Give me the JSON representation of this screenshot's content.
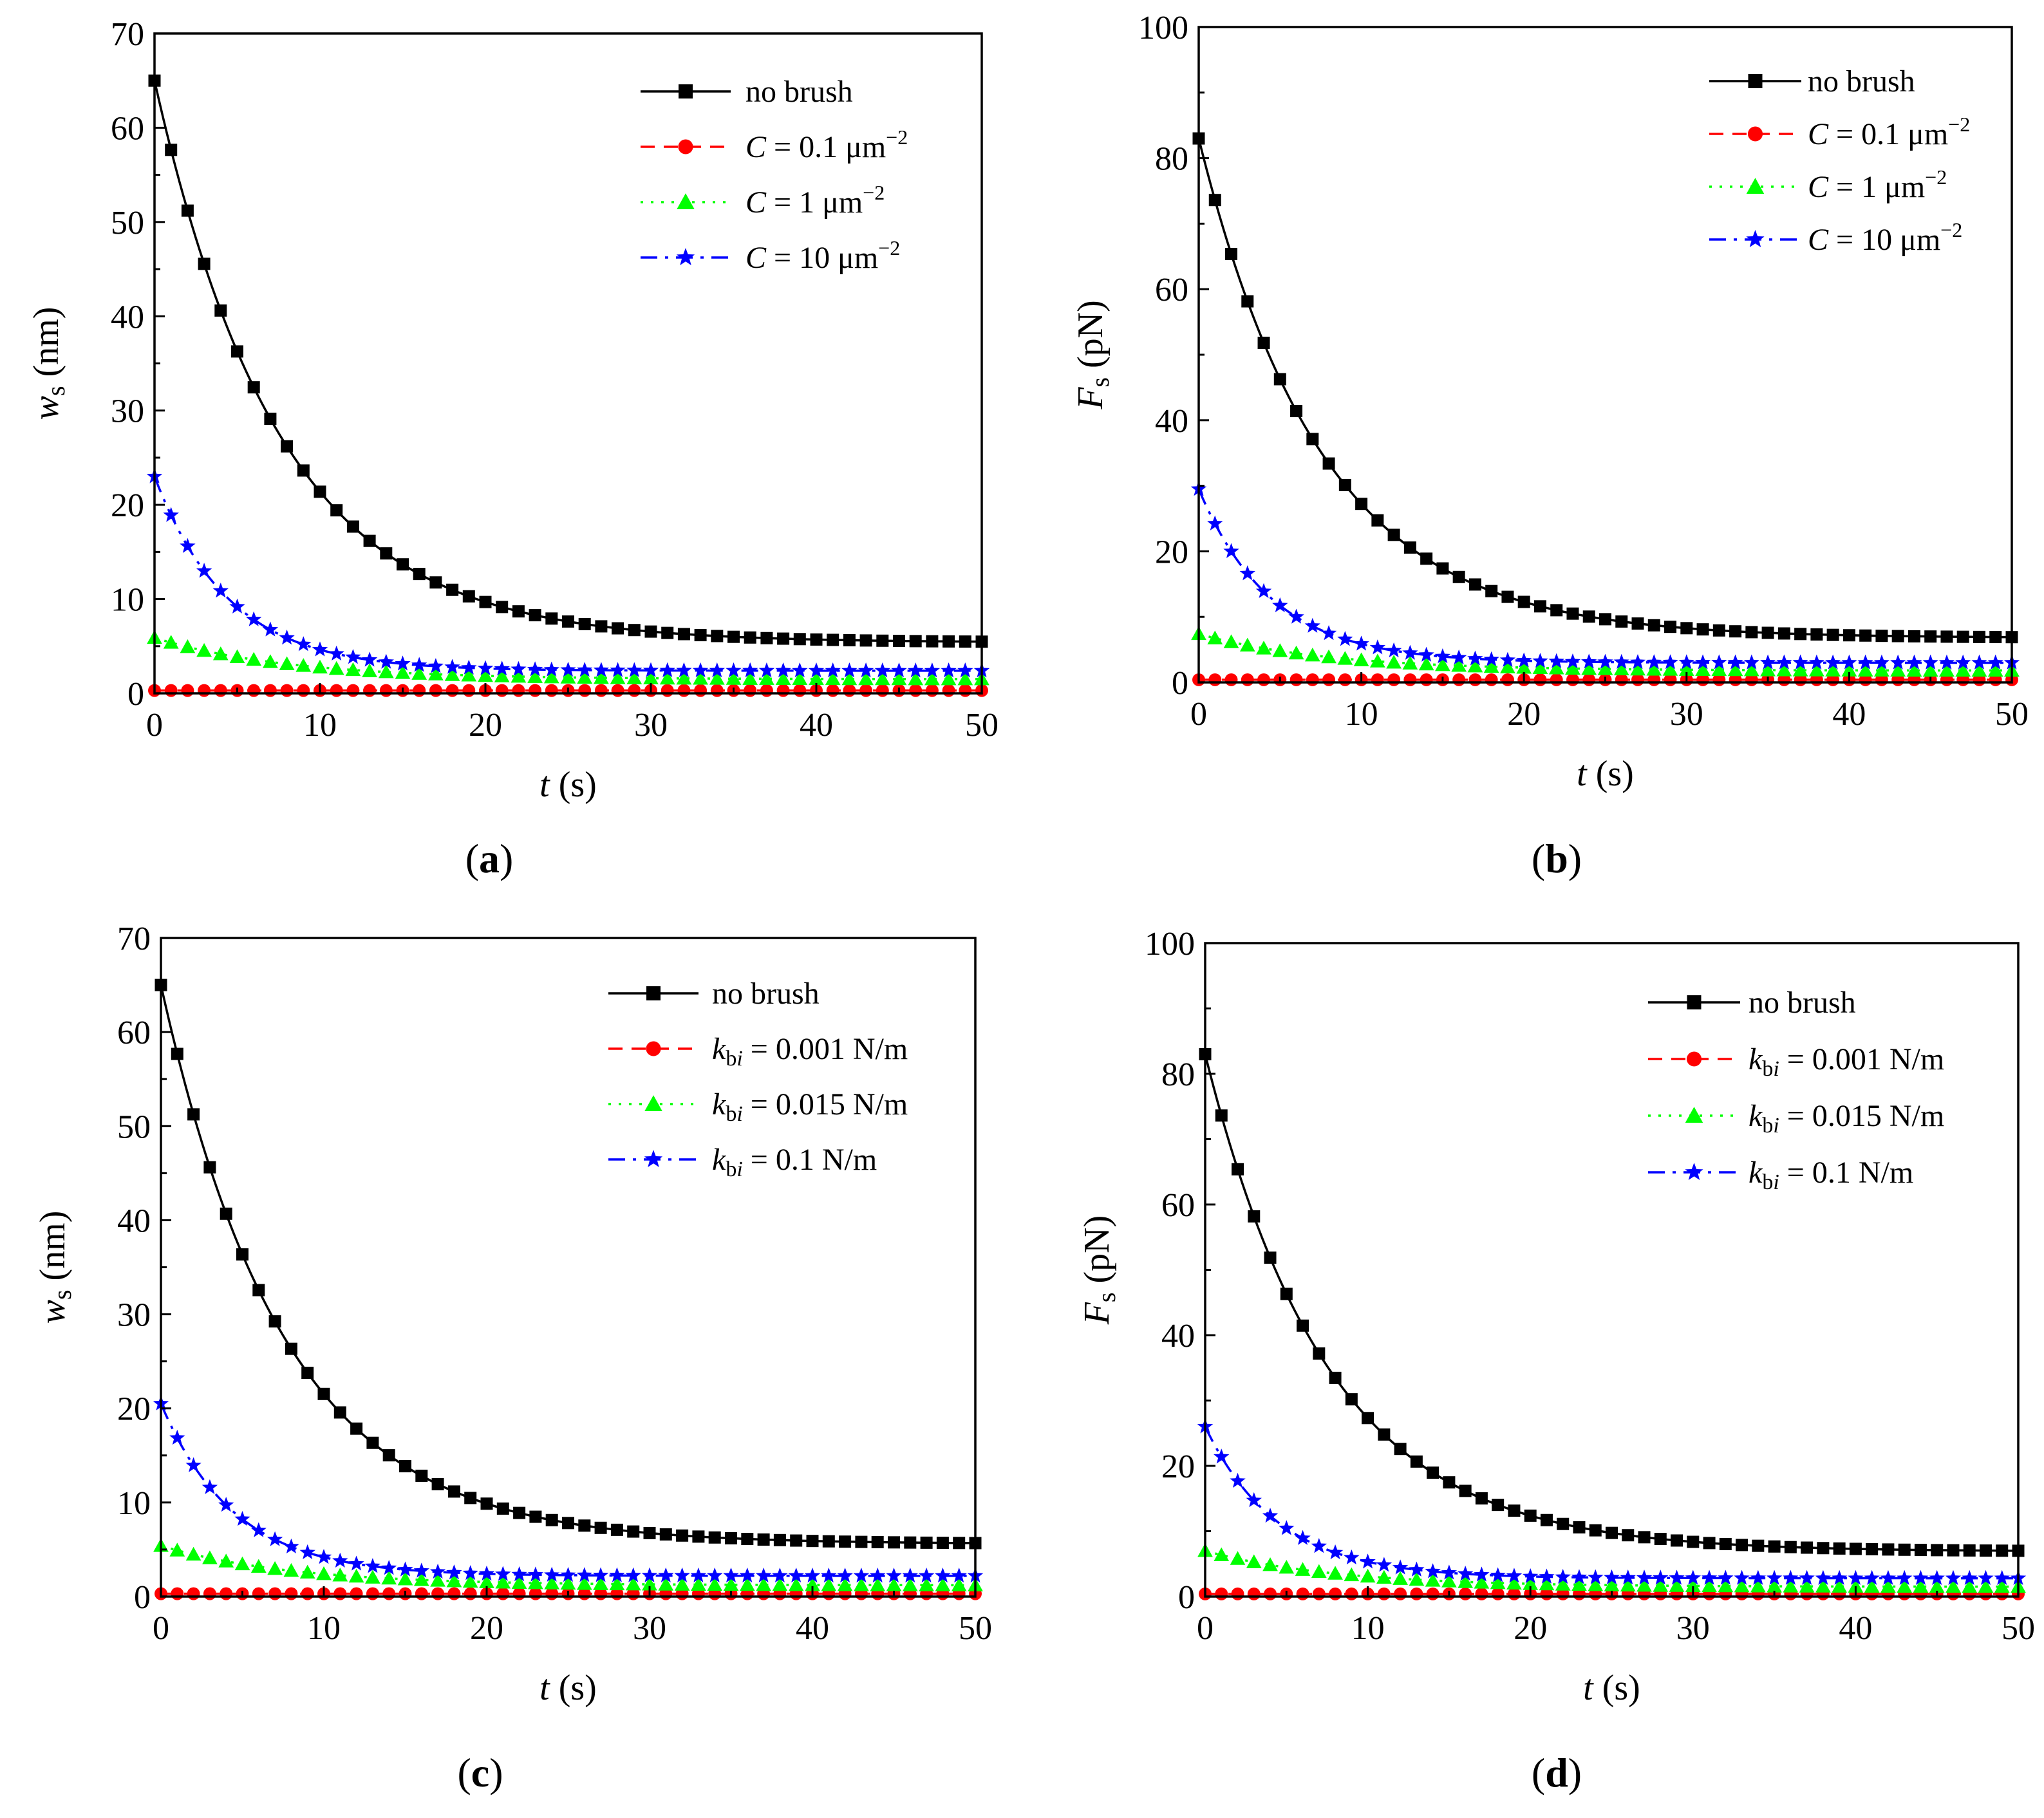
{
  "figure": {
    "panels": [
      {
        "label": "a",
        "legend_variant": "C",
        "chart_data": {
          "type": "line",
          "xlabel": "t (s)",
          "xlabel_var": "t",
          "xlabel_unit": " (s)",
          "ylabel": "w_s (nm)",
          "ylabel_var": "w",
          "ylabel_sub": "s",
          "ylabel_unit": " (nm)",
          "xlim": [
            0,
            50
          ],
          "ylim": [
            0,
            70
          ],
          "xticks": [
            "0",
            "10",
            "20",
            "30",
            "40",
            "50"
          ],
          "yticks": [
            "0",
            "10",
            "20",
            "30",
            "40",
            "50",
            "60",
            "70"
          ],
          "x": [
            0,
            1,
            2,
            3,
            4,
            5,
            6,
            7,
            8,
            9,
            10,
            11,
            12,
            13,
            14,
            15,
            16,
            17,
            18,
            19,
            20,
            21,
            22,
            23,
            24,
            25,
            26,
            27,
            28,
            29,
            30,
            31,
            32,
            33,
            34,
            35,
            36,
            37,
            38,
            39,
            40,
            41,
            42,
            43,
            44,
            45,
            46,
            47,
            48,
            49,
            50
          ],
          "legend_position": "top-right",
          "series": [
            {
              "name": "no brush",
              "legend_var": "",
              "legend_sub": "",
              "legend_rest": "no brush",
              "legend_sup": "",
              "color": "#000000",
              "dash": "solid",
              "marker": "square",
              "y0": 65,
              "yinf": 5.4,
              "tau": 7.6
            },
            {
              "name": "C = 0.1 μm−2",
              "legend_var": "C",
              "legend_sub": "",
              "legend_rest": " = 0.1 μm",
              "legend_sup": "−2",
              "color": "#ff0000",
              "dash": "dash",
              "marker": "circle",
              "y0": 0.3,
              "yinf": 0.3,
              "tau": 5
            },
            {
              "name": "C = 1 μm−2",
              "legend_var": "C",
              "legend_sub": "",
              "legend_rest": " = 1 μm",
              "legend_sup": "−2",
              "color": "#00ff00",
              "dash": "dot",
              "marker": "triangle",
              "y0": 5.9,
              "yinf": 1.5,
              "tau": 8
            },
            {
              "name": "C = 10 μm−2",
              "legend_var": "C",
              "legend_sub": "",
              "legend_rest": " = 10 μm",
              "legend_sup": "−2",
              "color": "#0000ff",
              "dash": "dashdot",
              "marker": "star",
              "y0": 23,
              "yinf": 2.4,
              "tau": 4.5
            }
          ]
        }
      },
      {
        "label": "b",
        "legend_variant": "C",
        "chart_data": {
          "type": "line",
          "xlabel": "t (s)",
          "xlabel_var": "t",
          "xlabel_unit": " (s)",
          "ylabel": "F_s (pN)",
          "ylabel_var": "F",
          "ylabel_sub": "s",
          "ylabel_unit": " (pN)",
          "xlim": [
            0,
            50
          ],
          "ylim": [
            0,
            100
          ],
          "xticks": [
            "0",
            "10",
            "20",
            "30",
            "40",
            "50"
          ],
          "yticks": [
            "0",
            "20",
            "40",
            "60",
            "80",
            "100"
          ],
          "x": [
            0,
            1,
            2,
            3,
            4,
            5,
            6,
            7,
            8,
            9,
            10,
            11,
            12,
            13,
            14,
            15,
            16,
            17,
            18,
            19,
            20,
            21,
            22,
            23,
            24,
            25,
            26,
            27,
            28,
            29,
            30,
            31,
            32,
            33,
            34,
            35,
            36,
            37,
            38,
            39,
            40,
            41,
            42,
            43,
            44,
            45,
            46,
            47,
            48,
            49,
            50
          ],
          "legend_position": "top-right",
          "series": [
            {
              "name": "no brush",
              "legend_var": "",
              "legend_sub": "",
              "legend_rest": "no brush",
              "legend_sup": "",
              "color": "#000000",
              "dash": "solid",
              "marker": "square",
              "y0": 83,
              "yinf": 6.8,
              "tau": 7.6
            },
            {
              "name": "C = 0.1 μm−2",
              "legend_var": "C",
              "legend_sub": "",
              "legend_rest": " = 0.1 μm",
              "legend_sup": "−2",
              "color": "#ff0000",
              "dash": "dash",
              "marker": "circle",
              "y0": 0.4,
              "yinf": 0.4,
              "tau": 5
            },
            {
              "name": "C = 1 μm−2",
              "legend_var": "C",
              "legend_sub": "",
              "legend_rest": " = 1 μm",
              "legend_sup": "−2",
              "color": "#00ff00",
              "dash": "dot",
              "marker": "triangle",
              "y0": 7.4,
              "yinf": 1.8,
              "tau": 8
            },
            {
              "name": "C = 10 μm−2",
              "legend_var": "C",
              "legend_sub": "",
              "legend_rest": " = 10 μm",
              "legend_sup": "−2",
              "color": "#0000ff",
              "dash": "dashdot",
              "marker": "star",
              "y0": 29.5,
              "yinf": 3.0,
              "tau": 4.5
            }
          ]
        }
      },
      {
        "label": "c",
        "legend_variant": "k",
        "chart_data": {
          "type": "line",
          "xlabel": "t (s)",
          "xlabel_var": "t",
          "xlabel_unit": " (s)",
          "ylabel": "w_s (nm)",
          "ylabel_var": "w",
          "ylabel_sub": "s",
          "ylabel_unit": " (nm)",
          "xlim": [
            0,
            50
          ],
          "ylim": [
            0,
            70
          ],
          "xticks": [
            "0",
            "10",
            "20",
            "30",
            "40",
            "50"
          ],
          "yticks": [
            "0",
            "10",
            "20",
            "30",
            "40",
            "50",
            "60",
            "70"
          ],
          "x": [
            0,
            1,
            2,
            3,
            4,
            5,
            6,
            7,
            8,
            9,
            10,
            11,
            12,
            13,
            14,
            15,
            16,
            17,
            18,
            19,
            20,
            21,
            22,
            23,
            24,
            25,
            26,
            27,
            28,
            29,
            30,
            31,
            32,
            33,
            34,
            35,
            36,
            37,
            38,
            39,
            40,
            41,
            42,
            43,
            44,
            45,
            46,
            47,
            48,
            49,
            50
          ],
          "legend_position": "top-right",
          "series": [
            {
              "name": "no brush",
              "legend_var": "",
              "legend_sub": "",
              "legend_rest": "no brush",
              "legend_sup": "",
              "color": "#000000",
              "dash": "solid",
              "marker": "square",
              "y0": 65,
              "yinf": 5.6,
              "tau": 7.6
            },
            {
              "name": "k_bi = 0.001 N/m",
              "legend_var": "k",
              "legend_sub": "bi",
              "legend_rest": " = 0.001 N/m",
              "legend_sup": "",
              "color": "#ff0000",
              "dash": "dash",
              "marker": "circle",
              "y0": 0.3,
              "yinf": 0.3,
              "tau": 5
            },
            {
              "name": "k_bi = 0.015 N/m",
              "legend_var": "k",
              "legend_sub": "bi",
              "legend_rest": " = 0.015 N/m",
              "legend_sup": "",
              "color": "#00ff00",
              "dash": "dot",
              "marker": "triangle",
              "y0": 5.4,
              "yinf": 1.2,
              "tau": 8
            },
            {
              "name": "k_bi = 0.1 N/m",
              "legend_var": "k",
              "legend_sub": "bi",
              "legend_rest": " = 0.1 N/m",
              "legend_sup": "",
              "color": "#0000ff",
              "dash": "dashdot",
              "marker": "star",
              "y0": 20.5,
              "yinf": 2.2,
              "tau": 4.5
            }
          ]
        }
      },
      {
        "label": "d",
        "legend_variant": "k",
        "chart_data": {
          "type": "line",
          "xlabel": "t (s)",
          "xlabel_var": "t",
          "xlabel_unit": " (s)",
          "ylabel": "F_s (pN)",
          "ylabel_var": "F",
          "ylabel_sub": "s",
          "ylabel_unit": " (pN)",
          "xlim": [
            0,
            50
          ],
          "ylim": [
            0,
            100
          ],
          "xticks": [
            "0",
            "10",
            "20",
            "30",
            "40",
            "50"
          ],
          "yticks": [
            "0",
            "20",
            "40",
            "60",
            "80",
            "100"
          ],
          "x": [
            0,
            1,
            2,
            3,
            4,
            5,
            6,
            7,
            8,
            9,
            10,
            11,
            12,
            13,
            14,
            15,
            16,
            17,
            18,
            19,
            20,
            21,
            22,
            23,
            24,
            25,
            26,
            27,
            28,
            29,
            30,
            31,
            32,
            33,
            34,
            35,
            36,
            37,
            38,
            39,
            40,
            41,
            42,
            43,
            44,
            45,
            46,
            47,
            48,
            49,
            50
          ],
          "legend_position": "top-right",
          "series": [
            {
              "name": "no brush",
              "legend_var": "",
              "legend_sub": "",
              "legend_rest": "no brush",
              "legend_sup": "",
              "color": "#000000",
              "dash": "solid",
              "marker": "square",
              "y0": 83,
              "yinf": 6.9,
              "tau": 7.6
            },
            {
              "name": "k_bi = 0.001 N/m",
              "legend_var": "k",
              "legend_sub": "bi",
              "legend_rest": " = 0.001 N/m",
              "legend_sup": "",
              "color": "#ff0000",
              "dash": "dash",
              "marker": "circle",
              "y0": 0.4,
              "yinf": 0.4,
              "tau": 5
            },
            {
              "name": "k_bi = 0.015 N/m",
              "legend_var": "k",
              "legend_sub": "bi",
              "legend_rest": " = 0.015 N/m",
              "legend_sup": "",
              "color": "#00ff00",
              "dash": "dot",
              "marker": "triangle",
              "y0": 7.0,
              "yinf": 1.5,
              "tau": 8
            },
            {
              "name": "k_bi = 0.1 N/m",
              "legend_var": "k",
              "legend_sub": "bi",
              "legend_rest": " = 0.1 N/m",
              "legend_sup": "",
              "color": "#0000ff",
              "dash": "dashdot",
              "marker": "star",
              "y0": 26,
              "yinf": 2.8,
              "tau": 4.5
            }
          ]
        }
      }
    ]
  }
}
